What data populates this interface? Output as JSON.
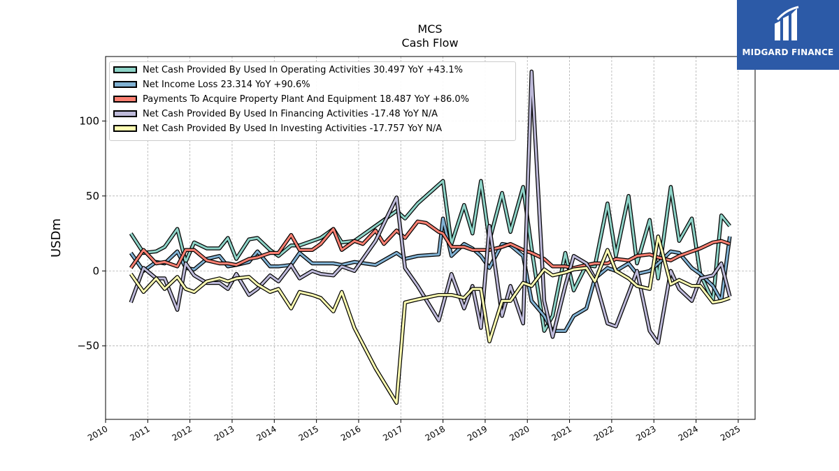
{
  "header": {
    "ticker": "MCS",
    "subtitle": "Cash Flow"
  },
  "logo": {
    "text": "MIDGARD FINANCE",
    "icon": "midgard-logo-icon"
  },
  "chart_data": {
    "type": "line",
    "title": "MCS",
    "subtitle": "Cash Flow",
    "xlabel": "",
    "ylabel": "USDm",
    "xlim": [
      2010,
      2025.4
    ],
    "ylim": [
      -99,
      143
    ],
    "x_ticks": [
      "2010",
      "2011",
      "2012",
      "2013",
      "2014",
      "2015",
      "2016",
      "2017",
      "2018",
      "2019",
      "2020",
      "2021",
      "2022",
      "2023",
      "2024",
      "2025"
    ],
    "y_ticks": [
      -50,
      0,
      50,
      100
    ],
    "y_tick_labels": [
      "−50",
      "0",
      "50",
      "100"
    ],
    "grid": true,
    "legend_position": "top-left",
    "series": [
      {
        "name": "Net Cash Provided By Used In Operating Activities  30.497 YoY +43.1%",
        "color": "#8dd3c7",
        "points": [
          [
            2010.6,
            25
          ],
          [
            2010.9,
            12
          ],
          [
            2011.2,
            13
          ],
          [
            2011.4,
            16
          ],
          [
            2011.7,
            28
          ],
          [
            2011.9,
            6
          ],
          [
            2012.1,
            19
          ],
          [
            2012.4,
            15
          ],
          [
            2012.7,
            15
          ],
          [
            2012.9,
            22
          ],
          [
            2013.1,
            8
          ],
          [
            2013.4,
            21
          ],
          [
            2013.6,
            22
          ],
          [
            2013.9,
            14
          ],
          [
            2014.1,
            10
          ],
          [
            2014.4,
            17
          ],
          [
            2014.6,
            17
          ],
          [
            2014.9,
            20
          ],
          [
            2015.1,
            22
          ],
          [
            2015.4,
            28
          ],
          [
            2015.6,
            19
          ],
          [
            2015.9,
            20
          ],
          [
            2016.4,
            30
          ],
          [
            2016.9,
            40
          ],
          [
            2017.1,
            35
          ],
          [
            2017.4,
            45
          ],
          [
            2018.0,
            60
          ],
          [
            2018.2,
            18
          ],
          [
            2018.5,
            44
          ],
          [
            2018.7,
            25
          ],
          [
            2018.9,
            60
          ],
          [
            2019.1,
            20
          ],
          [
            2019.4,
            52
          ],
          [
            2019.6,
            26
          ],
          [
            2019.9,
            56
          ],
          [
            2020.1,
            15
          ],
          [
            2020.4,
            -40
          ],
          [
            2020.6,
            -30
          ],
          [
            2020.9,
            12
          ],
          [
            2021.1,
            -13
          ],
          [
            2021.4,
            4
          ],
          [
            2021.6,
            3
          ],
          [
            2021.9,
            45
          ],
          [
            2022.1,
            10
          ],
          [
            2022.4,
            50
          ],
          [
            2022.6,
            5
          ],
          [
            2022.9,
            34
          ],
          [
            2023.1,
            -5
          ],
          [
            2023.4,
            56
          ],
          [
            2023.6,
            20
          ],
          [
            2023.9,
            35
          ],
          [
            2024.1,
            -2
          ],
          [
            2024.4,
            -20
          ],
          [
            2024.6,
            37
          ],
          [
            2024.8,
            30
          ]
        ]
      },
      {
        "name": "Net Income Loss  23.314 YoY +90.6%",
        "color": "#80b1d3",
        "points": [
          [
            2010.6,
            12
          ],
          [
            2010.9,
            0
          ],
          [
            2011.2,
            6
          ],
          [
            2011.4,
            5
          ],
          [
            2011.7,
            13
          ],
          [
            2011.9,
            2
          ],
          [
            2012.1,
            1
          ],
          [
            2012.4,
            8
          ],
          [
            2012.7,
            10
          ],
          [
            2012.9,
            3
          ],
          [
            2013.1,
            4
          ],
          [
            2013.4,
            6
          ],
          [
            2013.6,
            13
          ],
          [
            2013.9,
            3
          ],
          [
            2014.1,
            3
          ],
          [
            2014.4,
            4
          ],
          [
            2014.6,
            12
          ],
          [
            2014.9,
            5
          ],
          [
            2015.1,
            5
          ],
          [
            2015.4,
            5
          ],
          [
            2015.6,
            4
          ],
          [
            2015.9,
            6
          ],
          [
            2016.4,
            4
          ],
          [
            2016.9,
            12
          ],
          [
            2017.1,
            8
          ],
          [
            2017.4,
            10
          ],
          [
            2017.9,
            11
          ],
          [
            2018.0,
            35
          ],
          [
            2018.2,
            10
          ],
          [
            2018.5,
            18
          ],
          [
            2018.7,
            15
          ],
          [
            2018.9,
            10
          ],
          [
            2019.1,
            2
          ],
          [
            2019.4,
            18
          ],
          [
            2019.6,
            17
          ],
          [
            2019.9,
            10
          ],
          [
            2020.1,
            -20
          ],
          [
            2020.4,
            -30
          ],
          [
            2020.6,
            -40
          ],
          [
            2020.9,
            -40
          ],
          [
            2021.1,
            -30
          ],
          [
            2021.4,
            -25
          ],
          [
            2021.6,
            -5
          ],
          [
            2021.9,
            2
          ],
          [
            2022.1,
            0
          ],
          [
            2022.4,
            5
          ],
          [
            2022.6,
            -2
          ],
          [
            2022.9,
            0
          ],
          [
            2023.1,
            5
          ],
          [
            2023.4,
            13
          ],
          [
            2023.6,
            12
          ],
          [
            2023.9,
            2
          ],
          [
            2024.1,
            -2
          ],
          [
            2024.4,
            -10
          ],
          [
            2024.6,
            -20
          ],
          [
            2024.8,
            23
          ]
        ]
      },
      {
        "name": "Payments To Acquire Property Plant And Equipment  18.487 YoY +86.0%",
        "color": "#fb8072",
        "points": [
          [
            2010.6,
            2
          ],
          [
            2010.9,
            14
          ],
          [
            2011.2,
            5
          ],
          [
            2011.4,
            6
          ],
          [
            2011.7,
            3
          ],
          [
            2011.9,
            14
          ],
          [
            2012.1,
            14
          ],
          [
            2012.4,
            7
          ],
          [
            2012.7,
            5
          ],
          [
            2012.9,
            5
          ],
          [
            2013.1,
            4
          ],
          [
            2013.4,
            8
          ],
          [
            2013.6,
            9
          ],
          [
            2013.9,
            12
          ],
          [
            2014.1,
            12
          ],
          [
            2014.4,
            24
          ],
          [
            2014.6,
            14
          ],
          [
            2014.9,
            14
          ],
          [
            2015.1,
            18
          ],
          [
            2015.4,
            28
          ],
          [
            2015.6,
            14
          ],
          [
            2015.9,
            20
          ],
          [
            2016.1,
            18
          ],
          [
            2016.4,
            27
          ],
          [
            2016.6,
            18
          ],
          [
            2016.9,
            27
          ],
          [
            2017.1,
            22
          ],
          [
            2017.4,
            33
          ],
          [
            2017.6,
            32
          ],
          [
            2017.9,
            26
          ],
          [
            2018.0,
            25
          ],
          [
            2018.2,
            16
          ],
          [
            2018.5,
            16
          ],
          [
            2018.7,
            14
          ],
          [
            2018.9,
            14
          ],
          [
            2019.1,
            14
          ],
          [
            2019.4,
            16
          ],
          [
            2019.6,
            18
          ],
          [
            2019.9,
            14
          ],
          [
            2020.1,
            12
          ],
          [
            2020.4,
            8
          ],
          [
            2020.6,
            3
          ],
          [
            2020.9,
            3
          ],
          [
            2021.1,
            2
          ],
          [
            2021.4,
            4
          ],
          [
            2021.6,
            5
          ],
          [
            2021.9,
            5
          ],
          [
            2022.1,
            8
          ],
          [
            2022.4,
            7
          ],
          [
            2022.6,
            10
          ],
          [
            2022.9,
            11
          ],
          [
            2023.1,
            9
          ],
          [
            2023.4,
            7
          ],
          [
            2023.6,
            10
          ],
          [
            2023.9,
            13
          ],
          [
            2024.1,
            15
          ],
          [
            2024.4,
            19
          ],
          [
            2024.6,
            20
          ],
          [
            2024.8,
            18
          ]
        ]
      },
      {
        "name": "Net Cash Provided By Used In Financing Activities  -17.48 YoY N/A",
        "color": "#bebada",
        "points": [
          [
            2010.6,
            -21
          ],
          [
            2010.9,
            2
          ],
          [
            2011.2,
            -5
          ],
          [
            2011.4,
            -5
          ],
          [
            2011.7,
            -26
          ],
          [
            2011.9,
            5
          ],
          [
            2012.1,
            -3
          ],
          [
            2012.4,
            -8
          ],
          [
            2012.7,
            -8
          ],
          [
            2012.9,
            -12
          ],
          [
            2013.1,
            -2
          ],
          [
            2013.4,
            -16
          ],
          [
            2013.6,
            -12
          ],
          [
            2013.9,
            -3
          ],
          [
            2014.1,
            -7
          ],
          [
            2014.4,
            4
          ],
          [
            2014.6,
            -5
          ],
          [
            2014.9,
            0
          ],
          [
            2015.1,
            -2
          ],
          [
            2015.4,
            -3
          ],
          [
            2015.6,
            3
          ],
          [
            2015.9,
            0
          ],
          [
            2016.4,
            20
          ],
          [
            2016.9,
            49
          ],
          [
            2017.1,
            2
          ],
          [
            2017.4,
            -10
          ],
          [
            2017.9,
            -33
          ],
          [
            2018.2,
            -2
          ],
          [
            2018.5,
            -25
          ],
          [
            2018.7,
            -10
          ],
          [
            2018.9,
            -38
          ],
          [
            2019.1,
            30
          ],
          [
            2019.4,
            -30
          ],
          [
            2019.6,
            -10
          ],
          [
            2019.9,
            -35
          ],
          [
            2020.1,
            133
          ],
          [
            2020.4,
            -20
          ],
          [
            2020.6,
            -44
          ],
          [
            2020.9,
            -10
          ],
          [
            2021.1,
            10
          ],
          [
            2021.4,
            5
          ],
          [
            2021.6,
            -5
          ],
          [
            2021.9,
            -35
          ],
          [
            2022.1,
            -37
          ],
          [
            2022.4,
            -15
          ],
          [
            2022.6,
            0
          ],
          [
            2022.9,
            -40
          ],
          [
            2023.1,
            -48
          ],
          [
            2023.4,
            0
          ],
          [
            2023.6,
            -12
          ],
          [
            2023.9,
            -20
          ],
          [
            2024.1,
            -5
          ],
          [
            2024.4,
            -3
          ],
          [
            2024.6,
            5
          ],
          [
            2024.8,
            -17
          ]
        ]
      },
      {
        "name": "Net Cash Provided By Used In Investing Activities  -17.757 YoY N/A",
        "color": "#ffffb3",
        "points": [
          [
            2010.6,
            -2
          ],
          [
            2010.9,
            -14
          ],
          [
            2011.2,
            -5
          ],
          [
            2011.4,
            -12
          ],
          [
            2011.7,
            -4
          ],
          [
            2011.9,
            -12
          ],
          [
            2012.1,
            -14
          ],
          [
            2012.4,
            -7
          ],
          [
            2012.7,
            -5
          ],
          [
            2012.9,
            -7
          ],
          [
            2013.1,
            -5
          ],
          [
            2013.4,
            -4
          ],
          [
            2013.6,
            -9
          ],
          [
            2013.9,
            -14
          ],
          [
            2014.1,
            -12
          ],
          [
            2014.4,
            -25
          ],
          [
            2014.6,
            -14
          ],
          [
            2014.9,
            -16
          ],
          [
            2015.1,
            -18
          ],
          [
            2015.4,
            -27
          ],
          [
            2015.6,
            -14
          ],
          [
            2015.9,
            -38
          ],
          [
            2016.4,
            -65
          ],
          [
            2016.9,
            -88
          ],
          [
            2017.1,
            -21
          ],
          [
            2017.4,
            -19
          ],
          [
            2017.9,
            -16
          ],
          [
            2018.2,
            -16
          ],
          [
            2018.5,
            -18
          ],
          [
            2018.7,
            -12
          ],
          [
            2018.9,
            -12
          ],
          [
            2019.1,
            -47
          ],
          [
            2019.4,
            -20
          ],
          [
            2019.6,
            -20
          ],
          [
            2019.9,
            -8
          ],
          [
            2020.1,
            -10
          ],
          [
            2020.4,
            1
          ],
          [
            2020.6,
            -3
          ],
          [
            2020.9,
            -1
          ],
          [
            2021.1,
            1
          ],
          [
            2021.4,
            2
          ],
          [
            2021.6,
            -7
          ],
          [
            2021.9,
            14
          ],
          [
            2022.1,
            0
          ],
          [
            2022.4,
            -5
          ],
          [
            2022.6,
            -10
          ],
          [
            2022.9,
            -12
          ],
          [
            2023.1,
            23
          ],
          [
            2023.4,
            -9
          ],
          [
            2023.6,
            -6
          ],
          [
            2023.9,
            -10
          ],
          [
            2024.1,
            -10
          ],
          [
            2024.4,
            -21
          ],
          [
            2024.6,
            -20
          ],
          [
            2024.8,
            -18
          ]
        ]
      }
    ]
  }
}
